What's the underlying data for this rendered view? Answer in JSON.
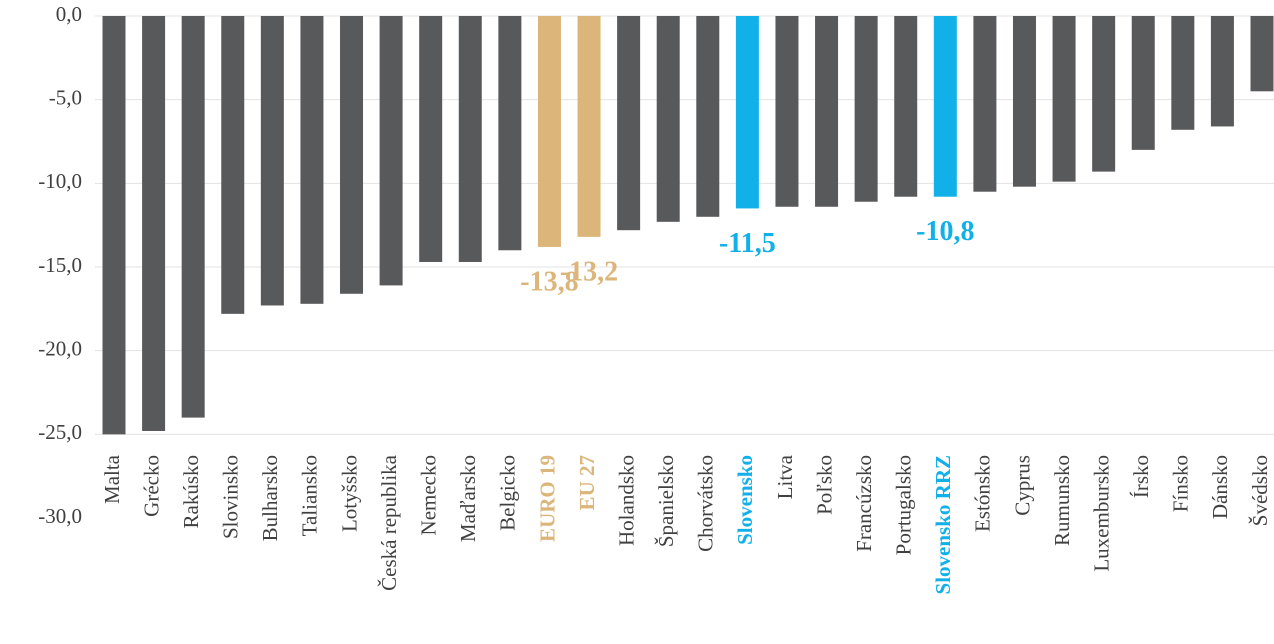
{
  "chart_data": {
    "type": "bar",
    "categories": [
      "Malta",
      "Grécko",
      "Rakúsko",
      "Slovinsko",
      "Bulharsko",
      "Taliansko",
      "Lotyšsko",
      "Česká republika",
      "Nemecko",
      "Maďarsko",
      "Belgicko",
      "EURO 19",
      "EU 27",
      "Holandsko",
      "Španielsko",
      "Chorvátsko",
      "Slovensko",
      "Litva",
      "Poľsko",
      "Francúzsko",
      "Portugalsko",
      "Slovensko RRZ",
      "Estónsko",
      "Cyprus",
      "Rumunsko",
      "Luxembursko",
      "Írsko",
      "Fínsko",
      "Dánsko",
      "Švédsko"
    ],
    "values": [
      -25.0,
      -24.8,
      -24.0,
      -17.8,
      -17.3,
      -17.2,
      -16.6,
      -16.1,
      -14.7,
      -14.7,
      -14.0,
      -13.8,
      -13.2,
      -12.8,
      -12.3,
      -12.0,
      -11.5,
      -11.4,
      -11.4,
      -11.1,
      -10.8,
      -10.8,
      -10.5,
      -10.2,
      -9.9,
      -9.3,
      -8.0,
      -6.8,
      -6.6,
      -4.5
    ],
    "value_labels": [
      null,
      null,
      null,
      null,
      null,
      null,
      null,
      null,
      null,
      null,
      null,
      "-13,8",
      "-13,2",
      null,
      null,
      null,
      "-11,5",
      null,
      null,
      null,
      null,
      "-10,8",
      null,
      null,
      null,
      null,
      null,
      null,
      null,
      null
    ],
    "colors": [
      "#58595b",
      "#58595b",
      "#58595b",
      "#58595b",
      "#58595b",
      "#58595b",
      "#58595b",
      "#58595b",
      "#58595b",
      "#58595b",
      "#58595b",
      "#dcb57a",
      "#dcb57a",
      "#58595b",
      "#58595b",
      "#58595b",
      "#12b0e8",
      "#58595b",
      "#58595b",
      "#58595b",
      "#58595b",
      "#12b0e8",
      "#58595b",
      "#58595b",
      "#58595b",
      "#58595b",
      "#58595b",
      "#58595b",
      "#58595b",
      "#58595b"
    ],
    "ylim": [
      -30,
      0
    ],
    "yticks": [
      {
        "value": 0,
        "label": "0,0"
      },
      {
        "value": -5,
        "label": "-5,0"
      },
      {
        "value": -10,
        "label": "-10,0"
      },
      {
        "value": -15,
        "label": "-15,0"
      },
      {
        "value": -20,
        "label": "-20,0"
      },
      {
        "value": -25,
        "label": "-25,0"
      },
      {
        "value": -30,
        "label": "-30,0"
      }
    ],
    "grid": true
  }
}
